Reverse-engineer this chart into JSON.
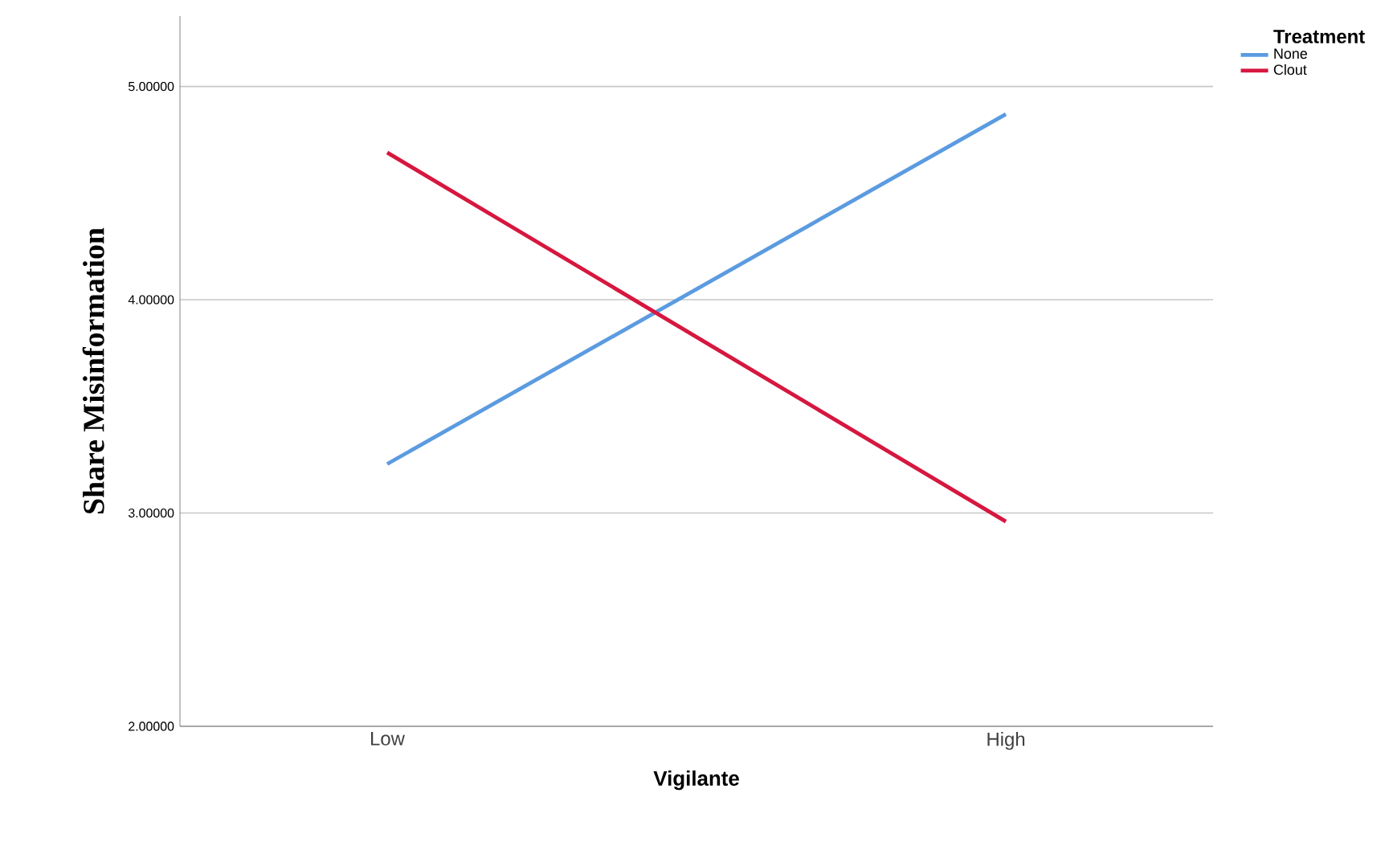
{
  "chart_data": {
    "type": "line",
    "xlabel": "Vigilante",
    "ylabel": "Share Misinformation",
    "legend_title": "Treatment",
    "categories": [
      "Low",
      "High"
    ],
    "series": [
      {
        "name": "None",
        "color": "#5b9be0",
        "values": [
          3.23,
          4.87
        ]
      },
      {
        "name": "Clout",
        "color": "#d6173f",
        "values": [
          4.69,
          2.96
        ]
      }
    ],
    "ylim": [
      2,
      5.33
    ],
    "yticks": [
      {
        "value": 2,
        "label": "2.00000"
      },
      {
        "value": 3,
        "label": "3.00000"
      },
      {
        "value": 4,
        "label": "4.00000"
      },
      {
        "value": 5,
        "label": "5.00000"
      }
    ],
    "grid": "y",
    "legend": "top right",
    "marker": "none",
    "line_style": "solid"
  }
}
